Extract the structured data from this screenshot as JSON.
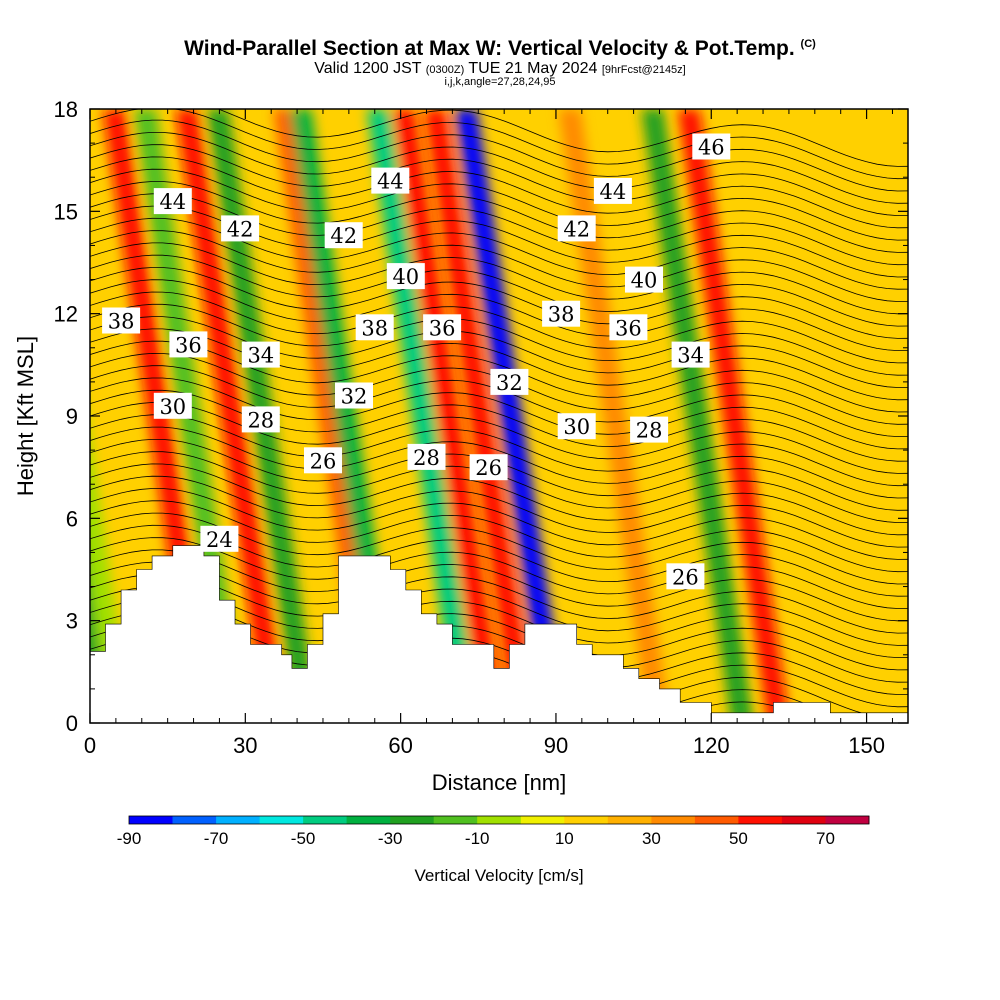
{
  "title": {
    "main": "Wind-Parallel Section at Max W: Vertical Velocity & Pot.Temp.",
    "copyright": "(C)",
    "valid_prefix": "Valid 1200 JST",
    "valid_utc": "(0300Z)",
    "valid_date": "TUE 21 May 2024",
    "forecast": "[9hrFcst@2145z]",
    "indices": "i,j,k,angle=27,28,24,95"
  },
  "colors": {
    "palette": [
      "#0000ff",
      "#0060ff",
      "#00b0ff",
      "#00e8e0",
      "#00cc80",
      "#00b040",
      "#20a020",
      "#50c020",
      "#a0e000",
      "#f0f000",
      "#ffd000",
      "#ffb000",
      "#ff8a00",
      "#ff5a00",
      "#ff1000",
      "#e00010",
      "#c00040",
      "#900060",
      "#600080"
    ]
  },
  "chart_data": {
    "type": "heatmap",
    "xlabel": "Distance [nm]",
    "ylabel": "Height [Kft MSL]",
    "xlim": [
      0,
      158
    ],
    "ylim": [
      0,
      18
    ],
    "xticks": [
      0,
      30,
      60,
      90,
      120,
      150
    ],
    "yticks": [
      0,
      3,
      6,
      9,
      12,
      15,
      18
    ],
    "colorbar": {
      "label": "Vertical Velocity [cm/s]",
      "ticks": [
        -90,
        -70,
        -50,
        -30,
        -10,
        10,
        30,
        50,
        70
      ],
      "min": -90,
      "max": 80,
      "step": 10
    },
    "cells": [
      {
        "x": 2,
        "value": -30
      },
      {
        "x": 6,
        "value": -10
      },
      {
        "x": 22,
        "value": 50
      },
      {
        "x": 28,
        "value": -20
      },
      {
        "x": 36,
        "value": 50
      },
      {
        "x": 42,
        "value": -30
      },
      {
        "x": 55,
        "value": 40
      },
      {
        "x": 58,
        "value": -40
      },
      {
        "x": 73,
        "value": -50
      },
      {
        "x": 78,
        "value": 50
      },
      {
        "x": 84,
        "value": 50
      },
      {
        "x": 90,
        "value": -90
      },
      {
        "x": 110,
        "value": 30
      },
      {
        "x": 126,
        "value": -30
      },
      {
        "x": 133,
        "value": 50
      }
    ],
    "terrain": [
      [
        0,
        2.1
      ],
      [
        3,
        2.1
      ],
      [
        3,
        2.9
      ],
      [
        6,
        2.9
      ],
      [
        6,
        3.9
      ],
      [
        9,
        3.9
      ],
      [
        9,
        4.5
      ],
      [
        12,
        4.5
      ],
      [
        12,
        4.9
      ],
      [
        16,
        4.9
      ],
      [
        16,
        5.2
      ],
      [
        22,
        5.2
      ],
      [
        22,
        4.9
      ],
      [
        25,
        4.9
      ],
      [
        25,
        3.6
      ],
      [
        28,
        3.6
      ],
      [
        28,
        2.9
      ],
      [
        31,
        2.9
      ],
      [
        31,
        2.3
      ],
      [
        37,
        2.3
      ],
      [
        37,
        2.0
      ],
      [
        39,
        2.0
      ],
      [
        39,
        1.6
      ],
      [
        42,
        1.6
      ],
      [
        42,
        2.3
      ],
      [
        45,
        2.3
      ],
      [
        45,
        3.2
      ],
      [
        48,
        3.2
      ],
      [
        48,
        4.9
      ],
      [
        58,
        4.9
      ],
      [
        58,
        4.5
      ],
      [
        61,
        4.5
      ],
      [
        61,
        3.9
      ],
      [
        64,
        3.9
      ],
      [
        64,
        3.2
      ],
      [
        67,
        3.2
      ],
      [
        67,
        2.9
      ],
      [
        70,
        2.9
      ],
      [
        70,
        2.3
      ],
      [
        78,
        2.3
      ],
      [
        78,
        1.6
      ],
      [
        81,
        1.6
      ],
      [
        81,
        2.3
      ],
      [
        84,
        2.3
      ],
      [
        84,
        2.9
      ],
      [
        94,
        2.9
      ],
      [
        94,
        2.3
      ],
      [
        97,
        2.3
      ],
      [
        97,
        2.0
      ],
      [
        103,
        2.0
      ],
      [
        103,
        1.6
      ],
      [
        106,
        1.6
      ],
      [
        106,
        1.3
      ],
      [
        110,
        1.3
      ],
      [
        110,
        1.0
      ],
      [
        114,
        1.0
      ],
      [
        114,
        0.6
      ],
      [
        120,
        0.6
      ],
      [
        120,
        0.3
      ],
      [
        132,
        0.3
      ],
      [
        132,
        0.6
      ],
      [
        143,
        0.6
      ],
      [
        143,
        0.3
      ],
      [
        158,
        0.3
      ],
      [
        158,
        0
      ]
    ],
    "isentropes": {
      "levels": [
        24,
        26,
        28,
        30,
        32,
        34,
        36,
        38,
        40,
        42,
        44,
        46
      ],
      "labels": [
        {
          "text": "44",
          "x": 16,
          "y": 15.3
        },
        {
          "text": "42",
          "x": 29,
          "y": 14.5
        },
        {
          "text": "42",
          "x": 49,
          "y": 14.3
        },
        {
          "text": "44",
          "x": 58,
          "y": 15.9
        },
        {
          "text": "40",
          "x": 61,
          "y": 13.1
        },
        {
          "text": "44",
          "x": 101,
          "y": 15.6
        },
        {
          "text": "42",
          "x": 94,
          "y": 14.5
        },
        {
          "text": "46",
          "x": 120,
          "y": 16.9
        },
        {
          "text": "40",
          "x": 107,
          "y": 13.0
        },
        {
          "text": "38",
          "x": 6,
          "y": 11.8
        },
        {
          "text": "36",
          "x": 19,
          "y": 11.1
        },
        {
          "text": "38",
          "x": 55,
          "y": 11.6
        },
        {
          "text": "36",
          "x": 68,
          "y": 11.6
        },
        {
          "text": "38",
          "x": 91,
          "y": 12.0
        },
        {
          "text": "36",
          "x": 104,
          "y": 11.6
        },
        {
          "text": "34",
          "x": 33,
          "y": 10.8
        },
        {
          "text": "34",
          "x": 116,
          "y": 10.8
        },
        {
          "text": "32",
          "x": 51,
          "y": 9.6
        },
        {
          "text": "32",
          "x": 81,
          "y": 10.0
        },
        {
          "text": "30",
          "x": 16,
          "y": 9.3
        },
        {
          "text": "28",
          "x": 33,
          "y": 8.9
        },
        {
          "text": "30",
          "x": 94,
          "y": 8.7
        },
        {
          "text": "28",
          "x": 108,
          "y": 8.6
        },
        {
          "text": "26",
          "x": 45,
          "y": 7.7
        },
        {
          "text": "28",
          "x": 65,
          "y": 7.8
        },
        {
          "text": "26",
          "x": 77,
          "y": 7.5
        },
        {
          "text": "24",
          "x": 25,
          "y": 5.4
        },
        {
          "text": "26",
          "x": 115,
          "y": 4.3
        }
      ]
    }
  }
}
